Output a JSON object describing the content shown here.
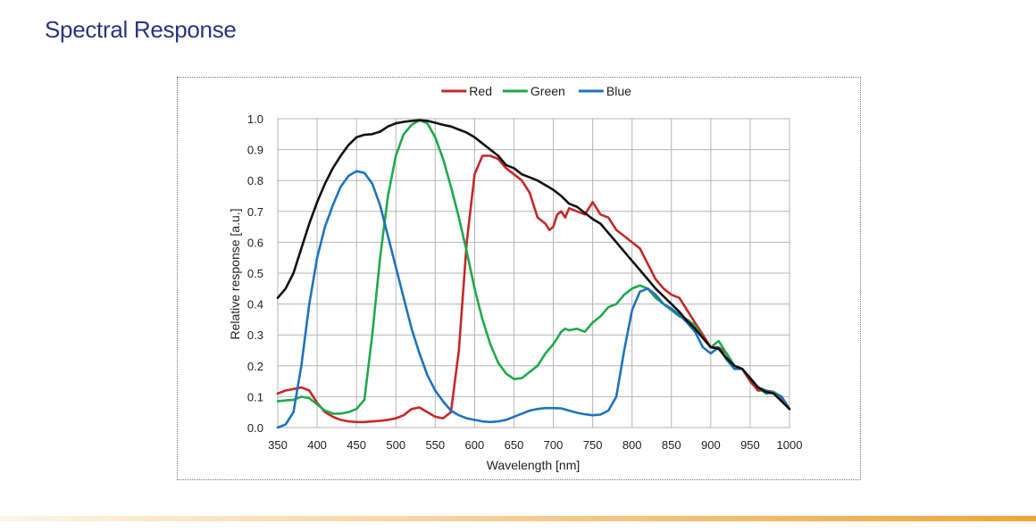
{
  "page": {
    "title": "Spectral Response",
    "title_color": "#2a3580",
    "bar_color_start": "#fdf4e6",
    "bar_color_end": "#f1a43a"
  },
  "chart_data": {
    "type": "line",
    "xlabel": "Wavelength [nm]",
    "ylabel": "Relative response [a.u.]",
    "xlim": [
      350,
      1000
    ],
    "ylim": [
      0,
      1.0
    ],
    "xticks": [
      350,
      400,
      450,
      500,
      550,
      600,
      650,
      700,
      750,
      800,
      850,
      900,
      950,
      1000
    ],
    "yticks": [
      0.0,
      0.1,
      0.2,
      0.3,
      0.4,
      0.5,
      0.6,
      0.7,
      0.8,
      0.9,
      1.0
    ],
    "ytick_labels": [
      "0.0",
      "0.1",
      "0.2",
      "0.3",
      "0.4",
      "0.5",
      "0.6",
      "0.7",
      "0.8",
      "0.9",
      "1.0"
    ],
    "grid": true,
    "legend_position": "top-center",
    "series": [
      {
        "name": "Red",
        "color": "#c62828",
        "points": [
          [
            350,
            0.11
          ],
          [
            360,
            0.12
          ],
          [
            370,
            0.125
          ],
          [
            380,
            0.13
          ],
          [
            390,
            0.12
          ],
          [
            400,
            0.08
          ],
          [
            410,
            0.05
          ],
          [
            420,
            0.035
          ],
          [
            430,
            0.025
          ],
          [
            440,
            0.02
          ],
          [
            450,
            0.018
          ],
          [
            460,
            0.018
          ],
          [
            470,
            0.02
          ],
          [
            480,
            0.022
          ],
          [
            490,
            0.025
          ],
          [
            500,
            0.03
          ],
          [
            510,
            0.04
          ],
          [
            520,
            0.06
          ],
          [
            530,
            0.065
          ],
          [
            540,
            0.05
          ],
          [
            550,
            0.035
          ],
          [
            560,
            0.03
          ],
          [
            570,
            0.05
          ],
          [
            580,
            0.25
          ],
          [
            590,
            0.6
          ],
          [
            600,
            0.82
          ],
          [
            610,
            0.88
          ],
          [
            620,
            0.88
          ],
          [
            630,
            0.87
          ],
          [
            640,
            0.84
          ],
          [
            650,
            0.82
          ],
          [
            660,
            0.8
          ],
          [
            670,
            0.76
          ],
          [
            680,
            0.68
          ],
          [
            690,
            0.66
          ],
          [
            695,
            0.64
          ],
          [
            700,
            0.65
          ],
          [
            705,
            0.69
          ],
          [
            710,
            0.7
          ],
          [
            715,
            0.68
          ],
          [
            720,
            0.71
          ],
          [
            730,
            0.7
          ],
          [
            740,
            0.69
          ],
          [
            750,
            0.73
          ],
          [
            760,
            0.69
          ],
          [
            770,
            0.68
          ],
          [
            780,
            0.64
          ],
          [
            790,
            0.62
          ],
          [
            800,
            0.6
          ],
          [
            810,
            0.58
          ],
          [
            820,
            0.53
          ],
          [
            830,
            0.48
          ],
          [
            840,
            0.45
          ],
          [
            850,
            0.43
          ],
          [
            860,
            0.42
          ],
          [
            870,
            0.38
          ],
          [
            880,
            0.34
          ],
          [
            890,
            0.3
          ],
          [
            900,
            0.26
          ],
          [
            910,
            0.26
          ],
          [
            920,
            0.24
          ],
          [
            930,
            0.2
          ],
          [
            940,
            0.19
          ],
          [
            950,
            0.15
          ],
          [
            960,
            0.12
          ],
          [
            970,
            0.12
          ],
          [
            980,
            0.115
          ],
          [
            990,
            0.09
          ],
          [
            1000,
            0.06
          ]
        ]
      },
      {
        "name": "Green",
        "color": "#1fa94b",
        "points": [
          [
            350,
            0.085
          ],
          [
            360,
            0.088
          ],
          [
            370,
            0.09
          ],
          [
            380,
            0.1
          ],
          [
            390,
            0.095
          ],
          [
            400,
            0.075
          ],
          [
            410,
            0.055
          ],
          [
            420,
            0.045
          ],
          [
            430,
            0.045
          ],
          [
            440,
            0.05
          ],
          [
            450,
            0.06
          ],
          [
            460,
            0.09
          ],
          [
            470,
            0.3
          ],
          [
            480,
            0.55
          ],
          [
            490,
            0.75
          ],
          [
            500,
            0.88
          ],
          [
            510,
            0.95
          ],
          [
            520,
            0.98
          ],
          [
            530,
            0.995
          ],
          [
            540,
            0.985
          ],
          [
            550,
            0.94
          ],
          [
            560,
            0.87
          ],
          [
            570,
            0.78
          ],
          [
            580,
            0.68
          ],
          [
            590,
            0.57
          ],
          [
            600,
            0.45
          ],
          [
            610,
            0.35
          ],
          [
            620,
            0.27
          ],
          [
            630,
            0.21
          ],
          [
            640,
            0.175
          ],
          [
            650,
            0.157
          ],
          [
            660,
            0.16
          ],
          [
            670,
            0.18
          ],
          [
            680,
            0.2
          ],
          [
            690,
            0.24
          ],
          [
            700,
            0.27
          ],
          [
            710,
            0.31
          ],
          [
            715,
            0.32
          ],
          [
            720,
            0.315
          ],
          [
            730,
            0.32
          ],
          [
            740,
            0.31
          ],
          [
            750,
            0.34
          ],
          [
            760,
            0.36
          ],
          [
            770,
            0.39
          ],
          [
            780,
            0.4
          ],
          [
            790,
            0.43
          ],
          [
            800,
            0.45
          ],
          [
            810,
            0.46
          ],
          [
            820,
            0.45
          ],
          [
            830,
            0.42
          ],
          [
            840,
            0.4
          ],
          [
            850,
            0.38
          ],
          [
            860,
            0.36
          ],
          [
            870,
            0.35
          ],
          [
            880,
            0.33
          ],
          [
            890,
            0.29
          ],
          [
            900,
            0.26
          ],
          [
            910,
            0.28
          ],
          [
            920,
            0.24
          ],
          [
            930,
            0.2
          ],
          [
            940,
            0.19
          ],
          [
            950,
            0.16
          ],
          [
            960,
            0.13
          ],
          [
            970,
            0.11
          ],
          [
            980,
            0.115
          ],
          [
            990,
            0.1
          ],
          [
            1000,
            0.06
          ]
        ]
      },
      {
        "name": "Blue",
        "color": "#1e73be",
        "points": [
          [
            350,
            0.0
          ],
          [
            360,
            0.01
          ],
          [
            370,
            0.05
          ],
          [
            380,
            0.2
          ],
          [
            390,
            0.4
          ],
          [
            400,
            0.55
          ],
          [
            410,
            0.65
          ],
          [
            420,
            0.72
          ],
          [
            430,
            0.78
          ],
          [
            440,
            0.815
          ],
          [
            450,
            0.83
          ],
          [
            460,
            0.825
          ],
          [
            470,
            0.79
          ],
          [
            480,
            0.72
          ],
          [
            490,
            0.62
          ],
          [
            500,
            0.52
          ],
          [
            510,
            0.42
          ],
          [
            520,
            0.32
          ],
          [
            530,
            0.24
          ],
          [
            540,
            0.17
          ],
          [
            550,
            0.12
          ],
          [
            560,
            0.085
          ],
          [
            570,
            0.055
          ],
          [
            580,
            0.04
          ],
          [
            590,
            0.03
          ],
          [
            600,
            0.025
          ],
          [
            610,
            0.02
          ],
          [
            620,
            0.018
          ],
          [
            630,
            0.02
          ],
          [
            640,
            0.025
          ],
          [
            650,
            0.035
          ],
          [
            660,
            0.045
          ],
          [
            670,
            0.055
          ],
          [
            680,
            0.06
          ],
          [
            690,
            0.063
          ],
          [
            700,
            0.063
          ],
          [
            710,
            0.062
          ],
          [
            720,
            0.055
          ],
          [
            730,
            0.048
          ],
          [
            740,
            0.043
          ],
          [
            750,
            0.04
          ],
          [
            760,
            0.042
          ],
          [
            770,
            0.055
          ],
          [
            780,
            0.1
          ],
          [
            790,
            0.25
          ],
          [
            800,
            0.38
          ],
          [
            810,
            0.44
          ],
          [
            820,
            0.45
          ],
          [
            830,
            0.43
          ],
          [
            840,
            0.4
          ],
          [
            850,
            0.385
          ],
          [
            860,
            0.365
          ],
          [
            870,
            0.34
          ],
          [
            880,
            0.31
          ],
          [
            890,
            0.26
          ],
          [
            900,
            0.24
          ],
          [
            910,
            0.26
          ],
          [
            920,
            0.22
          ],
          [
            930,
            0.19
          ],
          [
            940,
            0.19
          ],
          [
            950,
            0.16
          ],
          [
            960,
            0.13
          ],
          [
            970,
            0.12
          ],
          [
            980,
            0.11
          ],
          [
            990,
            0.1
          ],
          [
            1000,
            0.06
          ]
        ]
      },
      {
        "name": "",
        "color": "#111111",
        "points": [
          [
            350,
            0.42
          ],
          [
            360,
            0.45
          ],
          [
            370,
            0.5
          ],
          [
            380,
            0.58
          ],
          [
            390,
            0.66
          ],
          [
            400,
            0.73
          ],
          [
            410,
            0.79
          ],
          [
            420,
            0.84
          ],
          [
            430,
            0.88
          ],
          [
            440,
            0.915
          ],
          [
            450,
            0.94
          ],
          [
            460,
            0.948
          ],
          [
            470,
            0.95
          ],
          [
            480,
            0.958
          ],
          [
            490,
            0.975
          ],
          [
            500,
            0.985
          ],
          [
            510,
            0.99
          ],
          [
            520,
            0.993
          ],
          [
            530,
            0.995
          ],
          [
            540,
            0.993
          ],
          [
            550,
            0.987
          ],
          [
            560,
            0.98
          ],
          [
            570,
            0.975
          ],
          [
            580,
            0.965
          ],
          [
            590,
            0.955
          ],
          [
            600,
            0.94
          ],
          [
            610,
            0.92
          ],
          [
            620,
            0.9
          ],
          [
            630,
            0.88
          ],
          [
            640,
            0.85
          ],
          [
            650,
            0.84
          ],
          [
            660,
            0.82
          ],
          [
            670,
            0.81
          ],
          [
            680,
            0.8
          ],
          [
            690,
            0.785
          ],
          [
            700,
            0.77
          ],
          [
            710,
            0.75
          ],
          [
            720,
            0.725
          ],
          [
            730,
            0.715
          ],
          [
            740,
            0.695
          ],
          [
            750,
            0.675
          ],
          [
            760,
            0.66
          ],
          [
            770,
            0.63
          ],
          [
            780,
            0.6
          ],
          [
            790,
            0.57
          ],
          [
            800,
            0.54
          ],
          [
            810,
            0.51
          ],
          [
            820,
            0.48
          ],
          [
            830,
            0.45
          ],
          [
            840,
            0.425
          ],
          [
            850,
            0.4
          ],
          [
            860,
            0.375
          ],
          [
            870,
            0.345
          ],
          [
            880,
            0.32
          ],
          [
            890,
            0.29
          ],
          [
            900,
            0.26
          ],
          [
            910,
            0.255
          ],
          [
            920,
            0.225
          ],
          [
            930,
            0.2
          ],
          [
            940,
            0.19
          ],
          [
            950,
            0.16
          ],
          [
            960,
            0.13
          ],
          [
            970,
            0.115
          ],
          [
            980,
            0.11
          ],
          [
            990,
            0.085
          ],
          [
            1000,
            0.06
          ]
        ]
      }
    ]
  }
}
